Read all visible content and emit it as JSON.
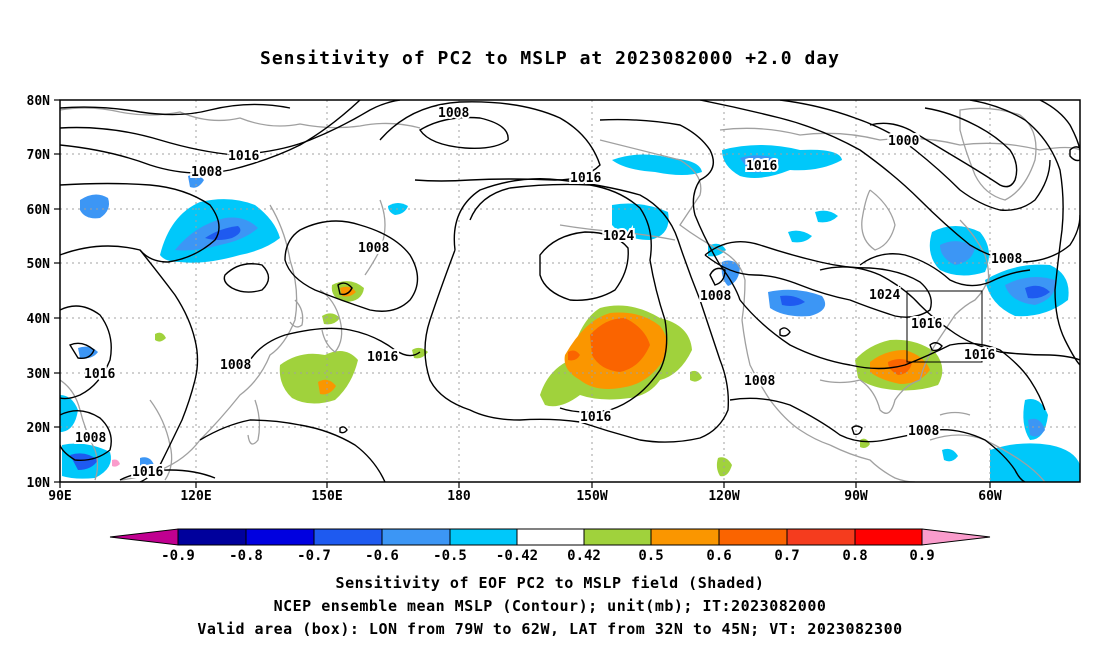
{
  "title": "Sensitivity of PC2 to MSLP at 2023082000 +2.0 day",
  "map": {
    "lat_labels": [
      "80N",
      "70N",
      "60N",
      "50N",
      "40N",
      "30N",
      "20N",
      "10N"
    ],
    "lon_labels": [
      "90E",
      "120E",
      "150E",
      "180",
      "150W",
      "120W",
      "90W",
      "60W"
    ],
    "contour_labels": [
      "1008",
      "1016",
      "1008",
      "1008",
      "1016",
      "1016",
      "1008",
      "1016",
      "1016",
      "1024",
      "1016",
      "1008",
      "1008",
      "1016",
      "1000",
      "1008",
      "1024",
      "1016",
      "1016",
      "1008",
      "1008"
    ],
    "valid_box": {
      "lon_from": "79W",
      "lon_to": "62W",
      "lat_from": "32N",
      "lat_to": "45N"
    },
    "colors": {
      "neg_09": "#c00090",
      "neg_08": "#00009c",
      "neg_07": "#0000e0",
      "neg_06": "#1e5af0",
      "neg_05": "#3c96f5",
      "neg_042": "#00c8fa",
      "pos_042": "#a0d23c",
      "pos_05": "#fa9600",
      "pos_06": "#fa6400",
      "pos_07": "#f53c1e",
      "pos_08": "#ff0000",
      "pos_09": "#fa9ccc",
      "contour": "#000000",
      "coast": "#a0a0a0",
      "grid": "#a0a0a0"
    }
  },
  "colorbar": {
    "labels": [
      "-0.9",
      "-0.8",
      "-0.7",
      "-0.6",
      "-0.5",
      "-0.42",
      "0.42",
      "0.5",
      "0.6",
      "0.7",
      "0.8",
      "0.9"
    ]
  },
  "caption": {
    "line1": "Sensitivity of EOF PC2 to MSLP field (Shaded)",
    "line2": "NCEP ensemble mean MSLP (Contour); unit(mb); IT:2023082000",
    "line3": "Valid area (box): LON from 79W to 62W, LAT from 32N to 45N; VT: 2023082300"
  }
}
